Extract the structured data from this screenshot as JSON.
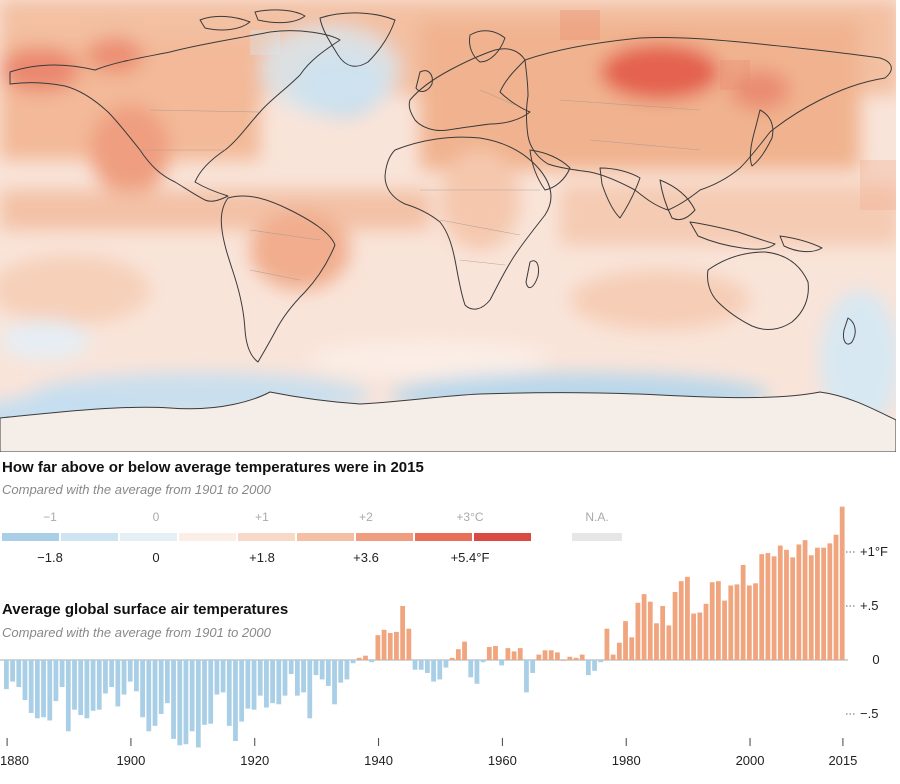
{
  "map": {
    "colors": {
      "ocean_base": "#f9e4d9",
      "land_outline": "#3a3a3a",
      "border": "#9a8e86"
    }
  },
  "legend": {
    "title": "How far above or below average temperatures were in 2015",
    "subtitle": "Compared with the average from 1901 to 2000",
    "celsius_ticks": [
      "−1",
      "0",
      "+1",
      "+2",
      "+3°C"
    ],
    "fahrenheit_ticks": [
      "−1.8",
      "0",
      "+1.8",
      "+3.6",
      "+5.4°F"
    ],
    "na_label": "N.A.",
    "swatches": [
      "#a9cfe6",
      "#cfe4f1",
      "#e4eff6",
      "#fbeee6",
      "#f8d9c7",
      "#f4bfa4",
      "#ef9f7f",
      "#e8705a",
      "#d94a43"
    ],
    "na_color": "#e6e6e6"
  },
  "chart": {
    "title": "Average global surface air temperatures",
    "subtitle": "Compared with the average from 1901 to 2000",
    "y_tick_labels": [
      "+1°F",
      "+.5",
      "0",
      "−.5"
    ],
    "x_tick_labels": [
      "1880",
      "1900",
      "1920",
      "1940",
      "1960",
      "1980",
      "2000",
      "2015"
    ],
    "colors": {
      "positive": "#f0a57e",
      "negative": "#a9cfe6",
      "axis": "#aaaaaa"
    }
  },
  "chart_data": {
    "type": "bar",
    "x_start": 1880,
    "x_end": 2015,
    "units": "°F",
    "ylim": [
      -0.75,
      1.55
    ],
    "y_ticks": [
      1,
      0.5,
      0,
      -0.5
    ],
    "values": [
      -0.27,
      -0.2,
      -0.25,
      -0.37,
      -0.49,
      -0.54,
      -0.53,
      -0.56,
      -0.38,
      -0.25,
      -0.66,
      -0.46,
      -0.51,
      -0.54,
      -0.47,
      -0.46,
      -0.31,
      -0.25,
      -0.43,
      -0.32,
      -0.2,
      -0.29,
      -0.53,
      -0.66,
      -0.61,
      -0.5,
      -0.4,
      -0.73,
      -0.79,
      -0.78,
      -0.66,
      -0.81,
      -0.6,
      -0.59,
      -0.32,
      -0.3,
      -0.61,
      -0.75,
      -0.57,
      -0.45,
      -0.46,
      -0.33,
      -0.44,
      -0.4,
      -0.41,
      -0.33,
      -0.13,
      -0.33,
      -0.3,
      -0.54,
      -0.14,
      -0.18,
      -0.24,
      -0.41,
      -0.21,
      -0.18,
      -0.03,
      0.02,
      0.04,
      -0.02,
      0.23,
      0.28,
      0.25,
      0.26,
      0.5,
      0.29,
      -0.09,
      -0.09,
      -0.12,
      -0.2,
      -0.18,
      -0.07,
      0.02,
      0.1,
      0.17,
      -0.16,
      -0.22,
      -0.02,
      0.12,
      0.13,
      -0.05,
      0.11,
      0.08,
      0.11,
      -0.3,
      -0.12,
      0.05,
      0.09,
      0.09,
      0.07,
      0.0,
      0.03,
      0.02,
      0.05,
      -0.14,
      -0.1,
      -0.02,
      0.29,
      0.05,
      0.16,
      0.36,
      0.21,
      0.53,
      0.61,
      0.54,
      0.34,
      0.5,
      0.32,
      0.63,
      0.73,
      0.77,
      0.43,
      0.44,
      0.52,
      0.72,
      0.73,
      0.55,
      0.69,
      0.7,
      0.88,
      0.69,
      0.71,
      0.98,
      0.99,
      0.96,
      1.06,
      1.02,
      0.95,
      1.07,
      1.11,
      0.97,
      1.04,
      1.04,
      1.08,
      1.16,
      1.42
    ]
  }
}
